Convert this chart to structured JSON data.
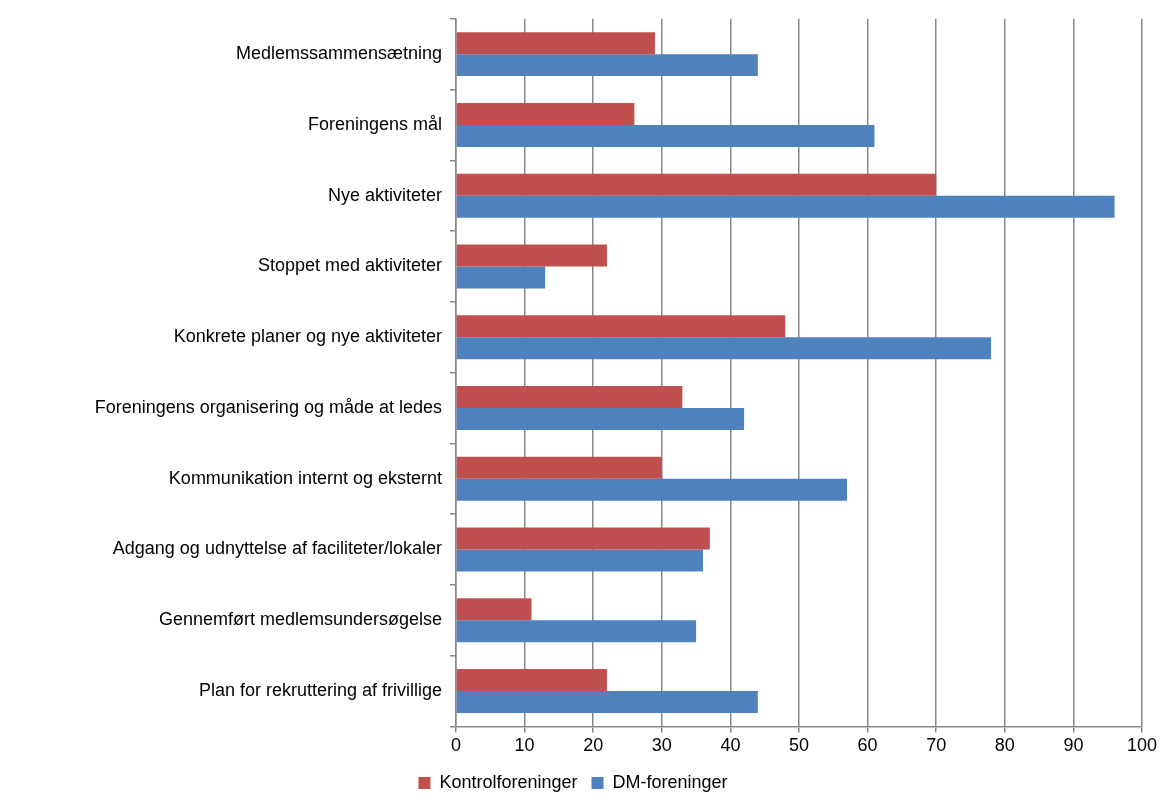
{
  "chart_data": {
    "type": "bar",
    "orientation": "horizontal",
    "categories": [
      "Medlemssammensætning",
      "Foreningens mål",
      "Nye aktiviteter",
      "Stoppet med aktiviteter",
      "Konkrete planer og nye aktiviteter",
      "Foreningens organisering og måde at ledes",
      "Kommunikation internt og eksternt",
      "Adgang og udnyttelse af faciliteter/lokaler",
      "Gennemført medlemsundersøgelse",
      "Plan for rekruttering af frivillige"
    ],
    "series": [
      {
        "name": "Kontrolforeninger",
        "color": "#c0504d",
        "values": [
          29,
          26,
          70,
          22,
          48,
          33,
          30,
          37,
          11,
          22
        ]
      },
      {
        "name": "DM-foreninger",
        "color": "#4f81bd",
        "values": [
          44,
          61,
          96,
          13,
          78,
          42,
          57,
          36,
          35,
          44
        ]
      }
    ],
    "xlim": [
      0,
      100
    ],
    "xticks": [
      0,
      10,
      20,
      30,
      40,
      50,
      60,
      70,
      80,
      90,
      100
    ],
    "grid": "x",
    "legend": "bottom"
  }
}
